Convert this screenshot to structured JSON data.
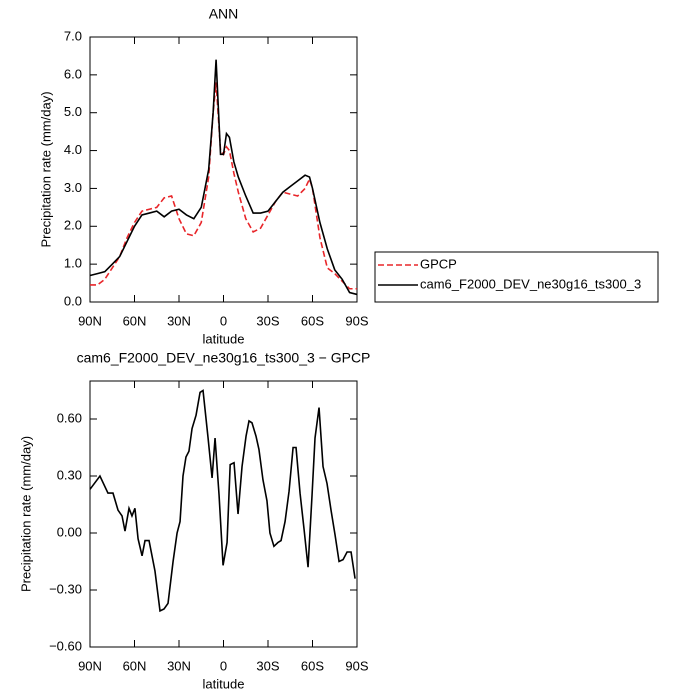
{
  "chart_data": [
    {
      "type": "line",
      "title": "ANN",
      "xlabel": "latitude",
      "ylabel": "Precipitation rate (mm/day)",
      "x": [
        90,
        85,
        80,
        75,
        70,
        65,
        60,
        55,
        50,
        45,
        40,
        35,
        30,
        25,
        20,
        15,
        10,
        7,
        5,
        2,
        0,
        -2,
        -4,
        -7,
        -10,
        -15,
        -20,
        -25,
        -30,
        -35,
        -40,
        -45,
        -50,
        -55,
        -58,
        -60,
        -65,
        -70,
        -75,
        -80,
        -85,
        -90
      ],
      "series": [
        {
          "name": "GPCP",
          "color": "#e8262a",
          "dashed": true,
          "values": [
            0.45,
            0.45,
            0.6,
            0.9,
            1.2,
            1.7,
            2.1,
            2.4,
            2.45,
            2.5,
            2.75,
            2.8,
            2.2,
            1.8,
            1.75,
            2.1,
            3.3,
            5.0,
            5.8,
            4.0,
            3.9,
            4.1,
            4.0,
            3.4,
            2.9,
            2.2,
            1.85,
            1.95,
            2.3,
            2.65,
            2.9,
            2.85,
            2.8,
            3.0,
            3.25,
            3.0,
            1.7,
            0.9,
            0.75,
            0.55,
            0.35,
            0.35
          ]
        },
        {
          "name": "cam6_F2000_DEV_ne30g16_ts300_3",
          "color": "#000000",
          "dashed": false,
          "values": [
            0.7,
            0.75,
            0.8,
            1.0,
            1.2,
            1.6,
            2.0,
            2.3,
            2.35,
            2.4,
            2.25,
            2.4,
            2.45,
            2.3,
            2.2,
            2.5,
            3.5,
            5.0,
            6.4,
            3.9,
            3.9,
            4.45,
            4.35,
            3.7,
            3.3,
            2.8,
            2.35,
            2.35,
            2.4,
            2.65,
            2.9,
            3.05,
            3.2,
            3.35,
            3.3,
            3.0,
            2.1,
            1.4,
            0.85,
            0.6,
            0.25,
            0.2
          ]
        }
      ],
      "xlim": [
        90,
        -90
      ],
      "xticks": [
        {
          "value": 90,
          "label": "90N"
        },
        {
          "value": 60,
          "label": "60N"
        },
        {
          "value": 30,
          "label": "30N"
        },
        0,
        {
          "value": -30,
          "label": "30S"
        },
        {
          "value": -60,
          "label": "60S"
        },
        {
          "value": -90,
          "label": "90S"
        }
      ],
      "ylim": [
        0,
        7
      ],
      "yticks": [
        {
          "value": 0,
          "label": "0.0"
        },
        {
          "value": 1,
          "label": "1.0"
        },
        {
          "value": 2,
          "label": "2.0"
        },
        {
          "value": 3,
          "label": "3.0"
        },
        {
          "value": 4,
          "label": "4.0"
        },
        {
          "value": 5,
          "label": "5.0"
        },
        {
          "value": 6,
          "label": "6.0"
        },
        {
          "value": 7,
          "label": "7.0"
        }
      ],
      "legend": "right"
    },
    {
      "type": "line",
      "title": "cam6_F2000_DEV_ne30g16_ts300_3 − GPCP",
      "xlabel": "latitude",
      "ylabel": "Precipitation rate (mm/day)",
      "x": [
        90,
        83.3,
        77.9,
        74.5,
        71.1,
        68.4,
        66.4,
        63.7,
        61.7,
        59.7,
        57.6,
        54.9,
        52.9,
        50.2,
        46.2,
        42.8,
        40.1,
        37.4,
        34.0,
        31.3,
        29.3,
        27.3,
        25.3,
        23.3,
        21.2,
        18.5,
        15.8,
        13.8,
        10.4,
        7.7,
        5.7,
        3.0,
        0.3,
        -2.4,
        -4.5,
        -7.1,
        -9.8,
        -12.5,
        -15.2,
        -17.2,
        -19.2,
        -21.9,
        -23.9,
        -26.6,
        -29.3,
        -31.3,
        -34.0,
        -36.7,
        -38.8,
        -41.5,
        -44.2,
        -46.9,
        -48.9,
        -51.6,
        -54.3,
        -57.0,
        -59.7,
        -61.7,
        -64.4,
        -67.1,
        -69.8,
        -72.5,
        -75.2,
        -77.9,
        -80.6,
        -83.3,
        -86.0,
        -88.7
      ],
      "values": [
        0.23,
        0.3,
        0.21,
        0.21,
        0.12,
        0.09,
        0.01,
        0.13,
        0.09,
        0.13,
        -0.03,
        -0.12,
        -0.04,
        -0.04,
        -0.2,
        -0.41,
        -0.4,
        -0.37,
        -0.15,
        0.0,
        0.06,
        0.3,
        0.4,
        0.43,
        0.55,
        0.62,
        0.74,
        0.75,
        0.5,
        0.29,
        0.5,
        0.2,
        -0.17,
        -0.05,
        0.36,
        0.37,
        0.1,
        0.35,
        0.51,
        0.59,
        0.58,
        0.51,
        0.44,
        0.28,
        0.17,
        0.0,
        -0.07,
        -0.05,
        -0.04,
        0.06,
        0.22,
        0.45,
        0.45,
        0.21,
        0.02,
        -0.18,
        0.2,
        0.5,
        0.66,
        0.35,
        0.26,
        0.12,
        -0.01,
        -0.15,
        -0.14,
        -0.1,
        -0.1,
        -0.24
      ],
      "color": "#000000",
      "xlim": [
        90,
        -90
      ],
      "xticks": [
        {
          "value": 90,
          "label": "90N"
        },
        {
          "value": 60,
          "label": "60N"
        },
        {
          "value": 30,
          "label": "30N"
        },
        0,
        {
          "value": -30,
          "label": "30S"
        },
        {
          "value": -60,
          "label": "60S"
        },
        {
          "value": -90,
          "label": "90S"
        }
      ],
      "ylim": [
        -0.6,
        0.8
      ],
      "yticks": [
        {
          "value": -0.6,
          "label": "−0.60"
        },
        {
          "value": -0.3,
          "label": "−0.30"
        },
        {
          "value": 0,
          "label": "0.00"
        },
        {
          "value": 0.3,
          "label": "0.30"
        },
        {
          "value": 0.6,
          "label": "0.60"
        }
      ]
    }
  ]
}
